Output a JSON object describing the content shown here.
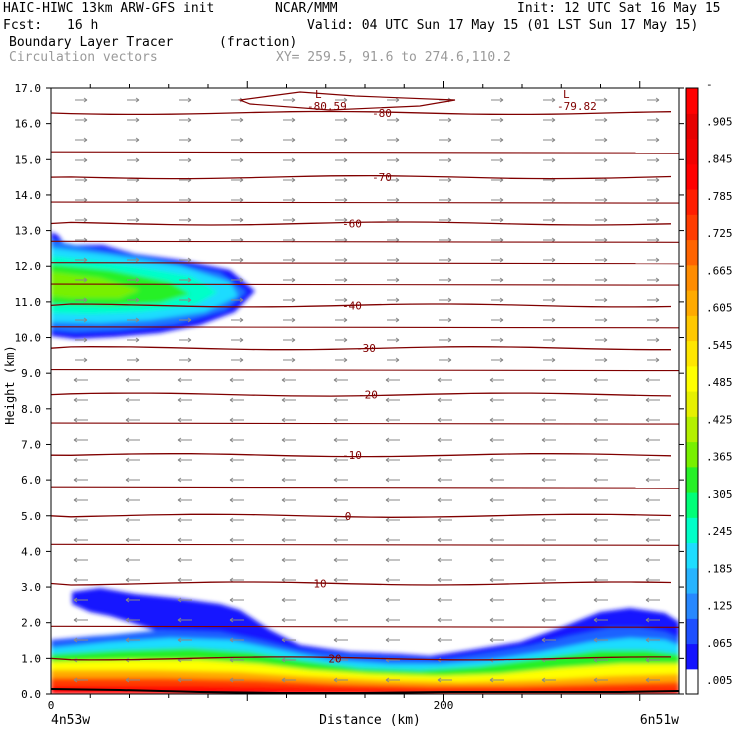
{
  "header": {
    "title": "HAIC-HIWC 13km ARW-GFS init",
    "org": "NCAR/MMM",
    "init": "Init: 12 UTC Sat 16 May 15",
    "fcst_label": "Fcst:",
    "fcst_value": "16 h",
    "valid": "Valid: 04 UTC Sun 17 May 15 (01 LST Sun 17 May 15)",
    "field": "Boundary Layer Tracer",
    "units": "(fraction)",
    "vectors": "Circulation vectors",
    "xy": "XY= 259.5, 91.6 to 274.6,110.2"
  },
  "chart_data": {
    "type": "heatmap",
    "xlabel": "Distance (km)",
    "ylabel": "Height (km)",
    "xlim": [
      0,
      320
    ],
    "ylim": [
      0,
      17
    ],
    "x_ticks": [
      {
        "value": 0,
        "label": "0"
      },
      {
        "value": 200,
        "label": "200"
      }
    ],
    "x_end_labels": {
      "left": "4n53w",
      "right": "6n51w"
    },
    "y_ticks": [
      "0.0",
      "1.0",
      "2.0",
      "3.0",
      "4.0",
      "5.0",
      "6.0",
      "7.0",
      "8.0",
      "9.0",
      "10.0",
      "11.0",
      "12.0",
      "13.0",
      "14.0",
      "15.0",
      "16.0",
      "17.0"
    ],
    "colorbar": {
      "labels": [
        ".005",
        ".065",
        ".125",
        ".185",
        ".245",
        ".305",
        ".365",
        ".425",
        ".485",
        ".545",
        ".605",
        ".665",
        ".725",
        ".785",
        ".845",
        ".905",
        "-"
      ],
      "colors": [
        "#ffffff",
        "#1414ff",
        "#1e50ff",
        "#2888ff",
        "#28b4ff",
        "#1edcff",
        "#00ffc8",
        "#00ff78",
        "#28f028",
        "#78f000",
        "#b4f000",
        "#e6f000",
        "#ffff00",
        "#ffe600",
        "#ffc800",
        "#ffaa00",
        "#ff8c00",
        "#ff6400",
        "#ff3c00",
        "#ff1e00",
        "#ff0000",
        "#f00000",
        "#e60000",
        "#ff0000"
      ]
    },
    "isotherms": [
      {
        "label": "20",
        "km": 1.0
      },
      {
        "label": "10",
        "km": 3.1
      },
      {
        "label": "0",
        "km": 5.0
      },
      {
        "label": "-10",
        "km": 6.7
      },
      {
        "label": "-20",
        "km": 8.4
      },
      {
        "label": "-30",
        "km": 9.7
      },
      {
        "label": "-40",
        "km": 10.9
      },
      {
        "label": "-60",
        "km": 13.2
      },
      {
        "label": "-70",
        "km": 14.5
      },
      {
        "label": "-80",
        "km": 16.3
      }
    ],
    "minima": [
      {
        "label": "L",
        "value": "-80.59",
        "x_km": 139,
        "km": 16.55
      },
      {
        "label": "L",
        "value": "-79.82",
        "x_km": 262,
        "km": 16.55
      }
    ]
  }
}
